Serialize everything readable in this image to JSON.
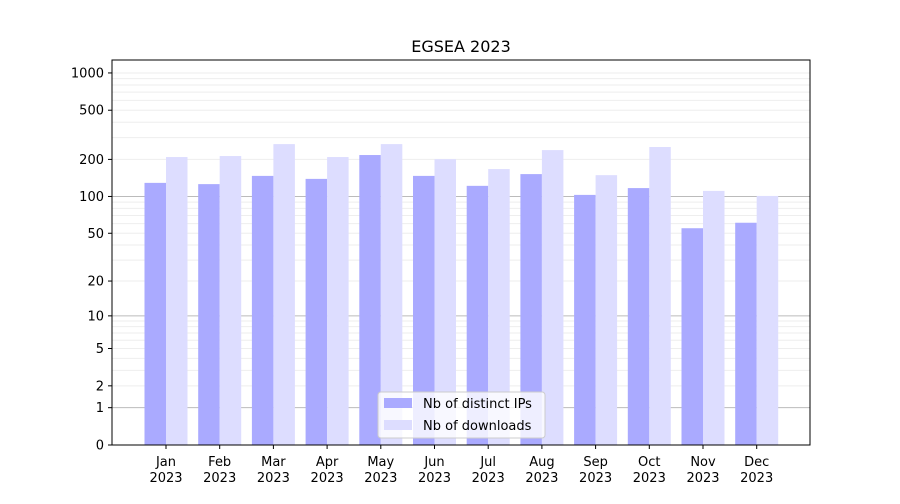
{
  "chart_data": {
    "type": "bar",
    "title": "EGSEA 2023",
    "xlabel": "",
    "ylabel": "",
    "yscale": "log(1+x)",
    "ylim": [
      0,
      1200
    ],
    "yticks": [
      0,
      1,
      2,
      5,
      10,
      20,
      50,
      100,
      200,
      500,
      1000
    ],
    "categories": [
      "Jan\n2023",
      "Feb\n2023",
      "Mar\n2023",
      "Apr\n2023",
      "May\n2023",
      "Jun\n2023",
      "Jul\n2023",
      "Aug\n2023",
      "Sep\n2023",
      "Oct\n2023",
      "Nov\n2023",
      "Dec\n2023"
    ],
    "series": [
      {
        "name": "Nb of distinct IPs",
        "color": "#aaaaff",
        "values": [
          129,
          126,
          147,
          139,
          217,
          147,
          122,
          152,
          103,
          117,
          55,
          61
        ]
      },
      {
        "name": "Nb of downloads",
        "color": "#ddddff",
        "values": [
          209,
          213,
          266,
          209,
          266,
          201,
          167,
          238,
          149,
          252,
          111,
          101
        ]
      }
    ],
    "legend": "bottom-center",
    "grid": true
  }
}
